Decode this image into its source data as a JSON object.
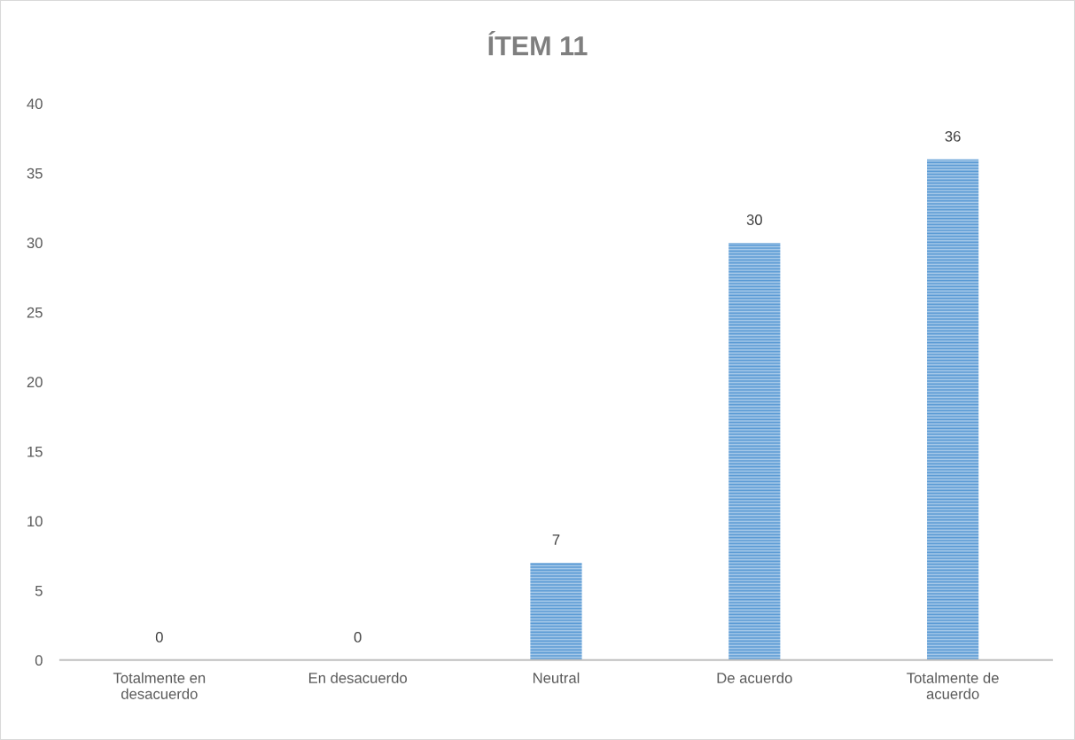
{
  "chart_data": {
    "type": "bar",
    "title": "ÍTEM 11",
    "categories": [
      "Totalmente en desacuerdo",
      "En desacuerdo",
      "Neutral",
      "De acuerdo",
      "Totalmente de acuerdo"
    ],
    "values": [
      0,
      0,
      7,
      30,
      36
    ],
    "color": "#5b9bd5",
    "ylim": [
      0,
      40
    ],
    "yticks": [
      0,
      5,
      10,
      15,
      20,
      25,
      30,
      35,
      40
    ],
    "grid": false,
    "data_labels": true
  }
}
